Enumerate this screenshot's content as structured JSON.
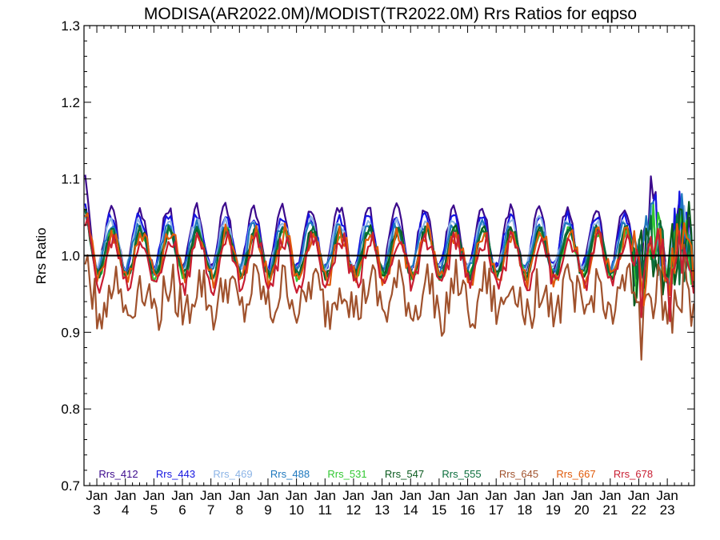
{
  "chart_data": {
    "type": "line",
    "title": "MODISA(AR2022.0M)/MODIST(TR2022.0M)  Rrs Ratios for eqpso",
    "ylabel": "Rrs Ratio",
    "xlabel": "",
    "ylim": [
      0.7,
      1.3
    ],
    "yticks": [
      "0.7",
      "0.8",
      "0.9",
      "1.0",
      "1.1",
      "1.2",
      "1.3"
    ],
    "x_start_year": 2002.55,
    "x_end_year": 2023.95,
    "xticks": [
      {
        "year": 2003,
        "line1": "Jan",
        "line2": "3"
      },
      {
        "year": 2004,
        "line1": "Jan",
        "line2": "4"
      },
      {
        "year": 2005,
        "line1": "Jan",
        "line2": "5"
      },
      {
        "year": 2006,
        "line1": "Jan",
        "line2": "6"
      },
      {
        "year": 2007,
        "line1": "Jan",
        "line2": "7"
      },
      {
        "year": 2008,
        "line1": "Jan",
        "line2": "8"
      },
      {
        "year": 2009,
        "line1": "Jan",
        "line2": "9"
      },
      {
        "year": 2010,
        "line1": "Jan",
        "line2": "10"
      },
      {
        "year": 2011,
        "line1": "Jan",
        "line2": "11"
      },
      {
        "year": 2012,
        "line1": "Jan",
        "line2": "12"
      },
      {
        "year": 2013,
        "line1": "Jan",
        "line2": "13"
      },
      {
        "year": 2014,
        "line1": "Jan",
        "line2": "14"
      },
      {
        "year": 2015,
        "line1": "Jan",
        "line2": "15"
      },
      {
        "year": 2016,
        "line1": "Jan",
        "line2": "16"
      },
      {
        "year": 2017,
        "line1": "Jan",
        "line2": "17"
      },
      {
        "year": 2018,
        "line1": "Jan",
        "line2": "18"
      },
      {
        "year": 2019,
        "line1": "Jan",
        "line2": "19"
      },
      {
        "year": 2020,
        "line1": "Jan",
        "line2": "20"
      },
      {
        "year": 2021,
        "line1": "Jan",
        "line2": "21"
      },
      {
        "year": 2022,
        "line1": "Jan",
        "line2": "22"
      },
      {
        "year": 2023,
        "line1": "Jan",
        "line2": "23"
      }
    ],
    "reference_line": 1.0,
    "legend_placement": "bottom",
    "series": [
      {
        "name": "Rrs_412",
        "color": "#3c0a8c",
        "base": 1.022,
        "amp": 0.04,
        "noise": 0.007,
        "phase": 0.0
      },
      {
        "name": "Rrs_443",
        "color": "#1414e0",
        "base": 1.018,
        "amp": 0.034,
        "noise": 0.007,
        "phase": 0.0
      },
      {
        "name": "Rrs_469",
        "color": "#8cb4e6",
        "base": 1.014,
        "amp": 0.032,
        "noise": 0.007,
        "phase": 0.0
      },
      {
        "name": "Rrs_488",
        "color": "#1e78be",
        "base": 1.01,
        "amp": 0.03,
        "noise": 0.007,
        "phase": 0.0
      },
      {
        "name": "Rrs_531",
        "color": "#32c832",
        "base": 1.002,
        "amp": 0.03,
        "noise": 0.007,
        "phase": 0.05
      },
      {
        "name": "Rrs_547",
        "color": "#0a5a1e",
        "base": 1.004,
        "amp": 0.03,
        "noise": 0.007,
        "phase": 0.05
      },
      {
        "name": "Rrs_555",
        "color": "#0a6e3c",
        "base": 1.004,
        "amp": 0.029,
        "noise": 0.007,
        "phase": 0.05
      },
      {
        "name": "Rrs_645",
        "color": "#a0522d",
        "base": 0.945,
        "amp": 0.02,
        "noise": 0.03,
        "phase": 0.1
      },
      {
        "name": "Rrs_667",
        "color": "#e05a0a",
        "base": 1.0,
        "amp": 0.03,
        "noise": 0.014,
        "phase": 0.08
      },
      {
        "name": "Rrs_678",
        "color": "#c81e32",
        "base": 0.992,
        "amp": 0.03,
        "noise": 0.014,
        "phase": 0.08
      }
    ]
  }
}
